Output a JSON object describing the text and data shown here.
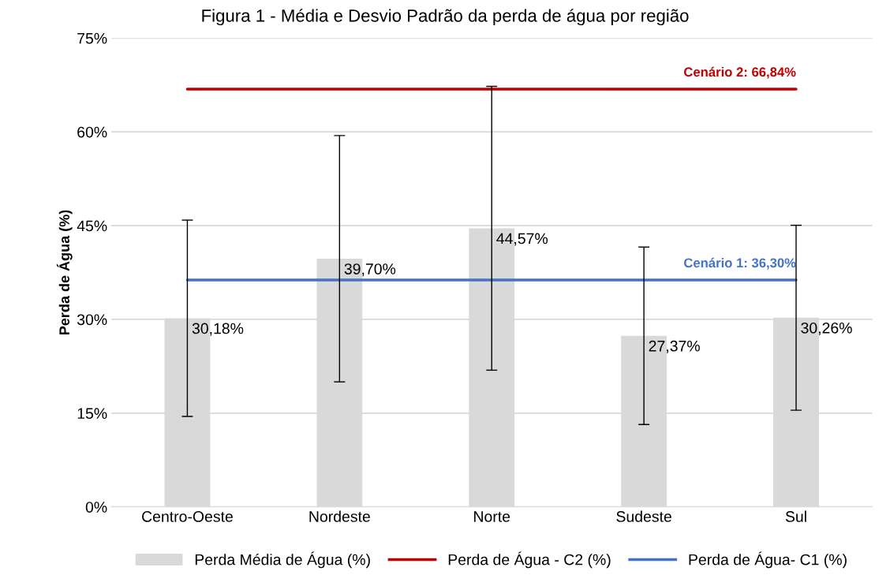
{
  "chart_data": {
    "type": "bar",
    "title": "Figura 1 - Média e Desvio Padrão da perda de água por região",
    "ylabel": "Perda de Água (%)",
    "categories": [
      "Centro-Oeste",
      "Nordeste",
      "Norte",
      "Sudeste",
      "Sul"
    ],
    "series": [
      {
        "name": "Perda Média de Água (%)",
        "color": "#d9d9d9",
        "values": [
          30.18,
          39.7,
          44.57,
          27.37,
          30.26
        ],
        "errors": [
          15.7,
          19.7,
          22.7,
          14.2,
          14.8
        ],
        "value_labels": [
          "30,18%",
          "39,70%",
          "44,57%",
          "27,37%",
          "30,26%"
        ]
      },
      {
        "name": "Perda de Água - C2 (%)",
        "type": "line",
        "color": "#c00000",
        "values": [
          66.84,
          66.84,
          66.84,
          66.84,
          66.84
        ]
      },
      {
        "name": "Perda de Água- C1 (%)",
        "type": "line",
        "color": "#4472c4",
        "values": [
          36.3,
          36.3,
          36.3,
          36.3,
          36.3
        ]
      }
    ],
    "annotations": [
      {
        "text": "Cenário 2: 66,84%",
        "x": "Sul",
        "y": 66.84
      },
      {
        "text": "Cenário 1: 36,30%",
        "x": "Sul",
        "y": 36.3
      }
    ],
    "ylim": [
      0,
      75
    ],
    "yticks": [
      {
        "value": 0,
        "label": "0%"
      },
      {
        "value": 15,
        "label": "15%"
      },
      {
        "value": 30,
        "label": "30%"
      },
      {
        "value": 45,
        "label": "45%"
      },
      {
        "value": 60,
        "label": "60%"
      },
      {
        "value": 75,
        "label": "75%"
      }
    ],
    "grid": "y",
    "legend": "bottom",
    "marker": "none",
    "line_style": "solid"
  }
}
